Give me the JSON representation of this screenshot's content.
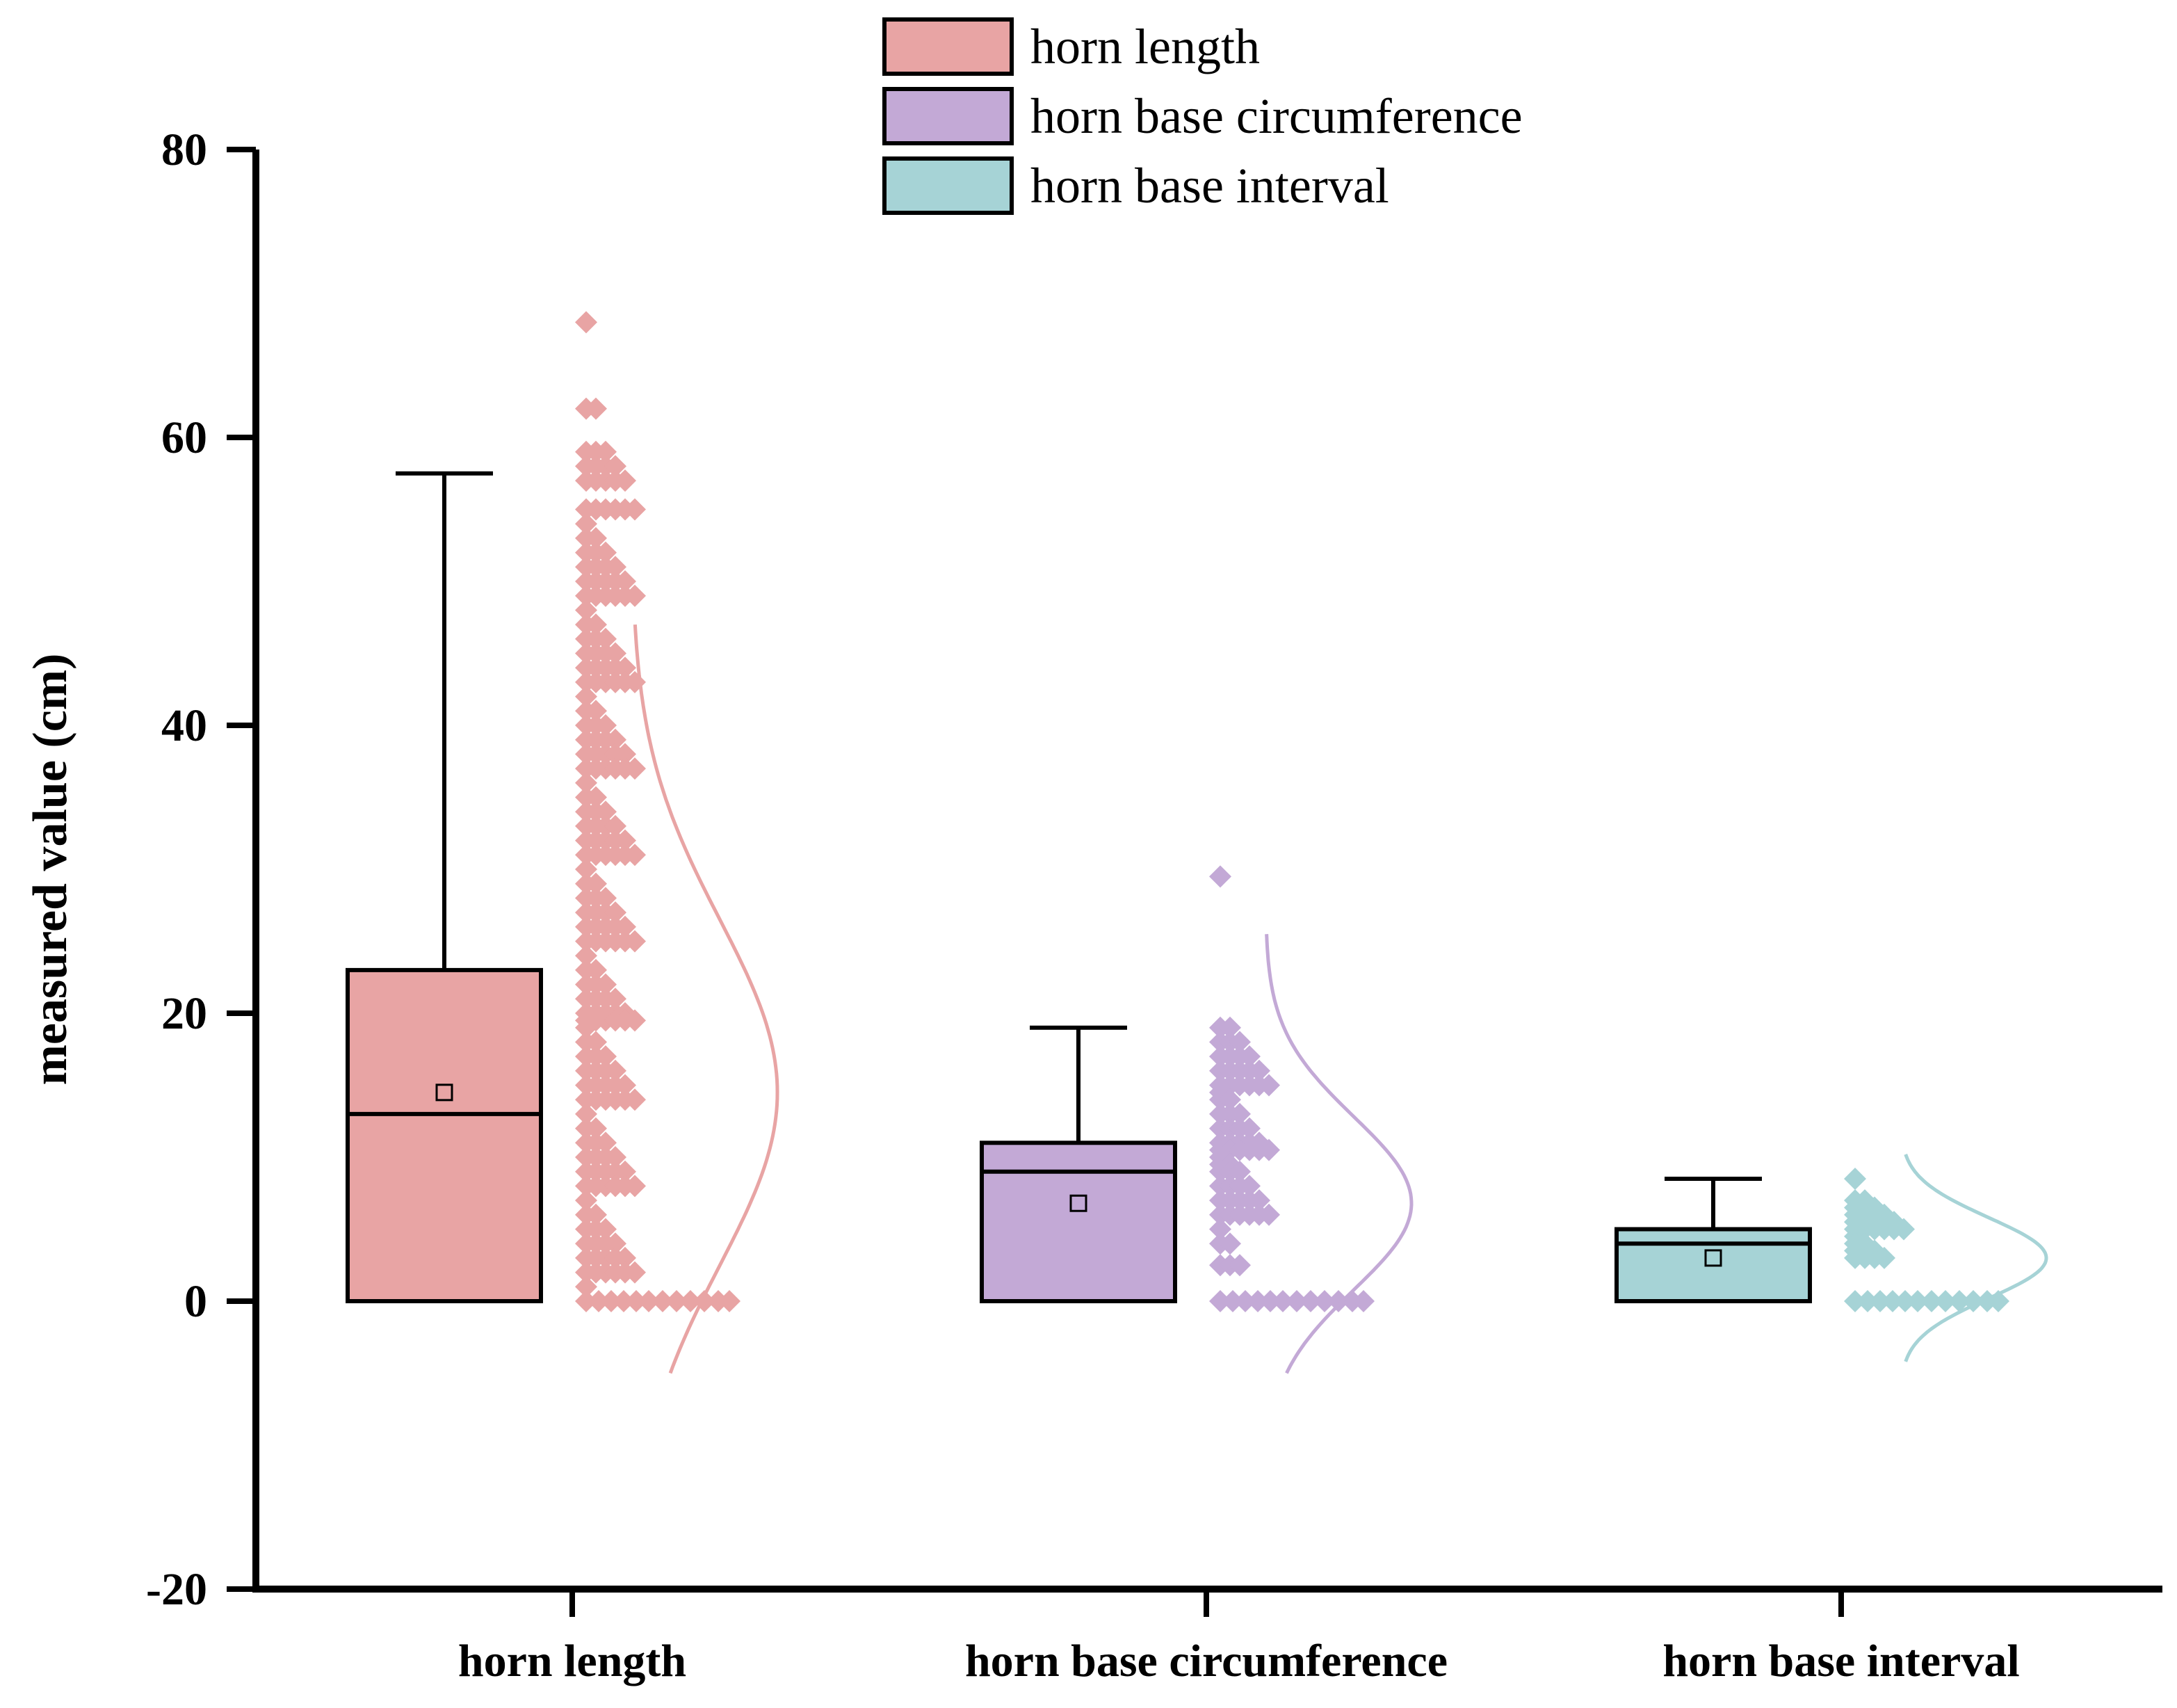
{
  "chart_data": {
    "type": "box",
    "title": "",
    "xlabel": "",
    "ylabel": "measured value (cm)",
    "ylim": [
      -20,
      80
    ],
    "yticks": [
      "-20",
      "0",
      "20",
      "40",
      "60",
      "80"
    ],
    "categories": [
      "horn length",
      "horn base circumference",
      "horn base interval"
    ],
    "legend": [
      "horn length",
      "horn base circumference",
      "horn base interval"
    ],
    "legend_position": "top-center",
    "series": [
      {
        "name": "horn length",
        "color": "#e8a4a4",
        "box": {
          "q1": 0,
          "median": 13,
          "q3": 23,
          "whisker_low": 0,
          "whisker_high": 57.5,
          "mean": 14.5
        },
        "points": [
          68,
          62,
          59,
          58,
          57,
          55,
          54,
          53,
          52,
          51,
          50,
          49,
          48,
          47,
          46,
          45,
          44,
          43,
          42,
          41,
          40,
          39,
          38,
          37,
          36,
          35,
          34,
          33,
          32,
          31,
          30,
          29,
          28,
          27,
          26,
          25,
          24,
          23,
          22,
          21,
          20,
          19.5,
          19,
          18,
          17,
          16,
          15,
          14,
          13,
          12,
          11,
          10,
          9,
          8,
          7,
          6,
          5,
          4,
          3,
          2,
          1,
          0
        ],
        "curve": {
          "mean": 14.5,
          "sd": 12,
          "range": [
            -5,
            47
          ]
        }
      },
      {
        "name": "horn base circumference",
        "color": "#c3a9d6",
        "box": {
          "q1": 0,
          "median": 9,
          "q3": 11,
          "whisker_low": 0,
          "whisker_high": 19,
          "mean": 6.8
        },
        "points": [
          29.5,
          19,
          18,
          17,
          16,
          15,
          14.5,
          14,
          13,
          12,
          11,
          10.5,
          10,
          9.5,
          9,
          8,
          7,
          6,
          5,
          4,
          2.5,
          0
        ],
        "curve": {
          "mean": 6.8,
          "sd": 6,
          "range": [
            -5,
            25.5
          ]
        }
      },
      {
        "name": "horn base interval",
        "color": "#a6d3d6",
        "box": {
          "q1": 0,
          "median": 4,
          "q3": 5,
          "whisker_low": 0,
          "whisker_high": 8.5,
          "mean": 3
        },
        "points": [
          8.5,
          7,
          6.5,
          6,
          5.5,
          5,
          4.5,
          4,
          3.5,
          3,
          0
        ],
        "curve": {
          "mean": 3,
          "sd": 2.8,
          "range": [
            -4.2,
            10.2
          ]
        }
      }
    ]
  }
}
